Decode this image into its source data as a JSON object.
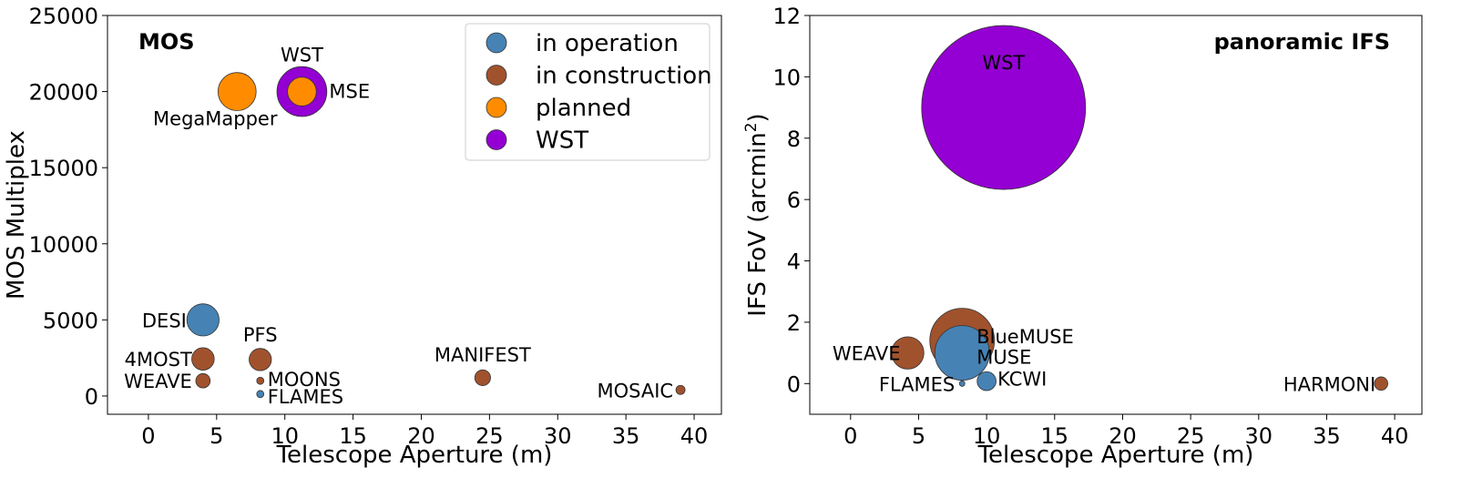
{
  "chart_data": [
    {
      "type": "scatter",
      "panel_title": "MOS",
      "xlabel": "Telescope Aperture (m)",
      "ylabel": "MOS Multiplex",
      "xlim": [
        -3,
        42
      ],
      "ylim": [
        -1200,
        25000
      ],
      "xticks": [
        0,
        5,
        10,
        15,
        20,
        25,
        30,
        35,
        40
      ],
      "yticks": [
        0,
        5000,
        10000,
        15000,
        20000,
        25000
      ],
      "legend": {
        "placement": "upper right",
        "entries": [
          {
            "label": "in operation",
            "color": "#4682b4"
          },
          {
            "label": "in construction",
            "color": "#a0522d"
          },
          {
            "label": "planned",
            "color": "#ff8c00"
          },
          {
            "label": "WST",
            "color": "#9400d3"
          }
        ]
      },
      "points": [
        {
          "label": "DESI",
          "x": 4.0,
          "y": 5000,
          "status": "in operation",
          "size": 5000
        },
        {
          "label": "4MOST",
          "x": 4.0,
          "y": 2436,
          "status": "in construction",
          "size": 2436
        },
        {
          "label": "WEAVE",
          "x": 4.0,
          "y": 1000,
          "status": "in construction",
          "size": 1000
        },
        {
          "label": "PFS",
          "x": 8.2,
          "y": 2394,
          "status": "in construction",
          "size": 2394
        },
        {
          "label": "MOONS",
          "x": 8.2,
          "y": 1000,
          "status": "in construction",
          "size": 250
        },
        {
          "label": "FLAMES",
          "x": 8.2,
          "y": 130,
          "status": "in operation",
          "size": 250
        },
        {
          "label": "MANIFEST",
          "x": 24.5,
          "y": 1200,
          "status": "in construction",
          "size": 1200
        },
        {
          "label": "MOSAIC",
          "x": 39,
          "y": 400,
          "status": "in construction",
          "size": 400
        },
        {
          "label": "MegaMapper",
          "x": 6.5,
          "y": 20000,
          "status": "planned",
          "size": 7000
        },
        {
          "label": "MSE",
          "x": 11.25,
          "y": 20000,
          "status": "planned",
          "size": 4000
        },
        {
          "label": "WST",
          "x": 11.25,
          "y": 20000,
          "status": "WST",
          "size": 12000
        }
      ]
    },
    {
      "type": "scatter",
      "panel_title": "panoramic IFS",
      "xlabel": "Telescope Aperture (m)",
      "ylabel_main": "IFS FoV (arcmin",
      "ylabel_sup": "2",
      "ylabel_end": ")",
      "xlim": [
        -3,
        42
      ],
      "ylim": [
        -1,
        12
      ],
      "xticks": [
        0,
        5,
        10,
        15,
        20,
        25,
        30,
        35,
        40
      ],
      "yticks": [
        0,
        2,
        4,
        6,
        8,
        10,
        12
      ],
      "points": [
        {
          "label": "WST",
          "x": 11.25,
          "y": 9.0,
          "status": "WST",
          "size": 9.0
        },
        {
          "label": "BlueMUSE",
          "x": 8.2,
          "y": 1.4,
          "status": "in construction",
          "size": 1.4
        },
        {
          "label": "MUSE",
          "x": 8.2,
          "y": 1.0,
          "status": "in operation",
          "size": 1.0
        },
        {
          "label": "WEAVE",
          "x": 4.2,
          "y": 1.0,
          "status": "in construction",
          "size": 0.35
        },
        {
          "label": "FLAMES",
          "x": 8.2,
          "y": 0.0,
          "status": "in operation",
          "size": 0.01
        },
        {
          "label": "KCWI",
          "x": 10,
          "y": 0.08,
          "status": "in operation",
          "size": 0.12
        },
        {
          "label": "HARMONI",
          "x": 39,
          "y": 0.0,
          "status": "in construction",
          "size": 0.06
        }
      ]
    }
  ]
}
